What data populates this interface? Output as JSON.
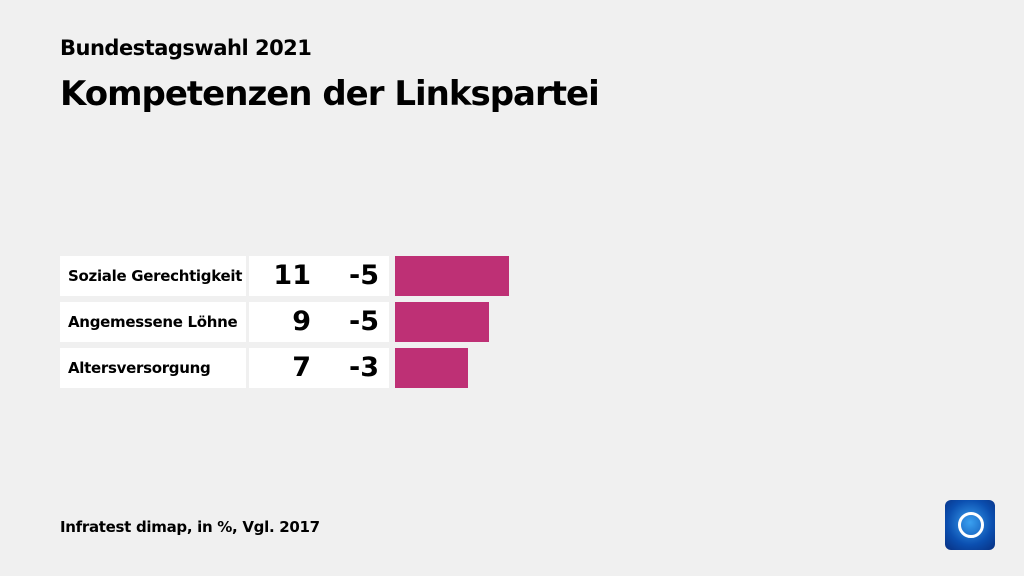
{
  "header": {
    "subtitle": "Bundestagswahl 2021",
    "title": "Kompetenzen der Linkspartei"
  },
  "chart_data": {
    "type": "bar",
    "categories": [
      "Soziale Gerechtigkeit",
      "Angemessene Löhne",
      "Altersversorgung"
    ],
    "values": [
      11,
      9,
      7
    ],
    "changes": [
      "-5",
      "-5",
      "-3"
    ],
    "bar_color": "#be3075"
  },
  "footer": {
    "source": "Infratest dimap, in %, Vgl. 2017"
  },
  "logo": {
    "name": "tagesschau-logo"
  }
}
